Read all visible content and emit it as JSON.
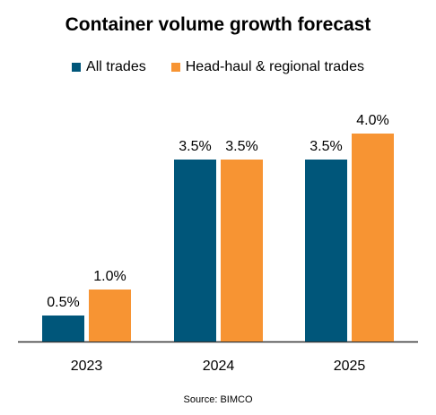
{
  "chart_data": {
    "type": "bar",
    "title": "Container volume growth forecast",
    "categories": [
      "2023",
      "2024",
      "2025"
    ],
    "series": [
      {
        "name": "All trades",
        "values": [
          0.5,
          3.5,
          3.5
        ],
        "labels": [
          "0.5%",
          "3.5%",
          "3.5%"
        ],
        "color": "#00567a"
      },
      {
        "name": "Head-haul & regional trades",
        "values": [
          1.0,
          3.5,
          4.0
        ],
        "labels": [
          "1.0%",
          "3.5%",
          "4.0%"
        ],
        "color": "#f79433"
      }
    ],
    "xlabel": "",
    "ylabel": "",
    "ylim": [
      0,
      4.0
    ],
    "grid": false,
    "legend": "top",
    "source": "Source: BIMCO"
  }
}
